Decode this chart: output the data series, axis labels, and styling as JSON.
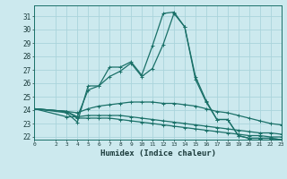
{
  "xlabel": "Humidex (Indice chaleur)",
  "ylabel": "",
  "background_color": "#cce9ee",
  "grid_color": "#aad4db",
  "line_color": "#1a7068",
  "xlim": [
    0,
    23
  ],
  "ylim": [
    21.8,
    31.8
  ],
  "yticks": [
    22,
    23,
    24,
    25,
    26,
    27,
    28,
    29,
    30,
    31
  ],
  "xticks": [
    0,
    2,
    3,
    4,
    5,
    6,
    7,
    8,
    9,
    10,
    11,
    12,
    13,
    14,
    15,
    16,
    17,
    18,
    19,
    20,
    21,
    22,
    23
  ],
  "series": [
    {
      "x": [
        0,
        3,
        4,
        5,
        6,
        7,
        8,
        9,
        10,
        11,
        12,
        13,
        14,
        15,
        16,
        17,
        18,
        19,
        20,
        21,
        22,
        23
      ],
      "y": [
        24.1,
        23.8,
        23.1,
        25.8,
        25.8,
        27.2,
        27.2,
        27.6,
        26.6,
        28.8,
        31.2,
        31.3,
        30.2,
        26.5,
        24.7,
        23.3,
        23.3,
        22.1,
        21.9,
        21.9,
        21.9,
        21.8
      ]
    },
    {
      "x": [
        0,
        3,
        4,
        5,
        6,
        7,
        8,
        9,
        10,
        11,
        12,
        13,
        14,
        15,
        16,
        17,
        18,
        19,
        20,
        21,
        22,
        23
      ],
      "y": [
        24.1,
        23.5,
        23.5,
        25.5,
        25.8,
        26.5,
        26.9,
        27.5,
        26.5,
        27.1,
        28.9,
        31.2,
        30.2,
        26.3,
        24.6,
        23.3,
        23.3,
        22.1,
        21.9,
        21.9,
        21.9,
        21.8
      ]
    },
    {
      "x": [
        0,
        3,
        4,
        5,
        6,
        7,
        8,
        9,
        10,
        11,
        12,
        13,
        14,
        15,
        16,
        17,
        18,
        19,
        20,
        21,
        22,
        23
      ],
      "y": [
        24.1,
        23.9,
        23.8,
        24.1,
        24.3,
        24.4,
        24.5,
        24.6,
        24.6,
        24.6,
        24.5,
        24.5,
        24.4,
        24.3,
        24.1,
        23.9,
        23.8,
        23.6,
        23.4,
        23.2,
        23.0,
        22.9
      ]
    },
    {
      "x": [
        0,
        3,
        4,
        5,
        6,
        7,
        8,
        9,
        10,
        11,
        12,
        13,
        14,
        15,
        16,
        17,
        18,
        19,
        20,
        21,
        22,
        23
      ],
      "y": [
        24.1,
        23.9,
        23.5,
        23.6,
        23.6,
        23.6,
        23.6,
        23.5,
        23.4,
        23.3,
        23.2,
        23.1,
        23.0,
        22.9,
        22.8,
        22.7,
        22.6,
        22.5,
        22.4,
        22.3,
        22.3,
        22.2
      ]
    },
    {
      "x": [
        0,
        3,
        4,
        5,
        6,
        7,
        8,
        9,
        10,
        11,
        12,
        13,
        14,
        15,
        16,
        17,
        18,
        19,
        20,
        21,
        22,
        23
      ],
      "y": [
        24.1,
        23.9,
        23.4,
        23.4,
        23.4,
        23.4,
        23.3,
        23.2,
        23.1,
        23.0,
        22.9,
        22.8,
        22.7,
        22.6,
        22.5,
        22.4,
        22.3,
        22.2,
        22.1,
        22.1,
        22.0,
        22.0
      ]
    }
  ]
}
